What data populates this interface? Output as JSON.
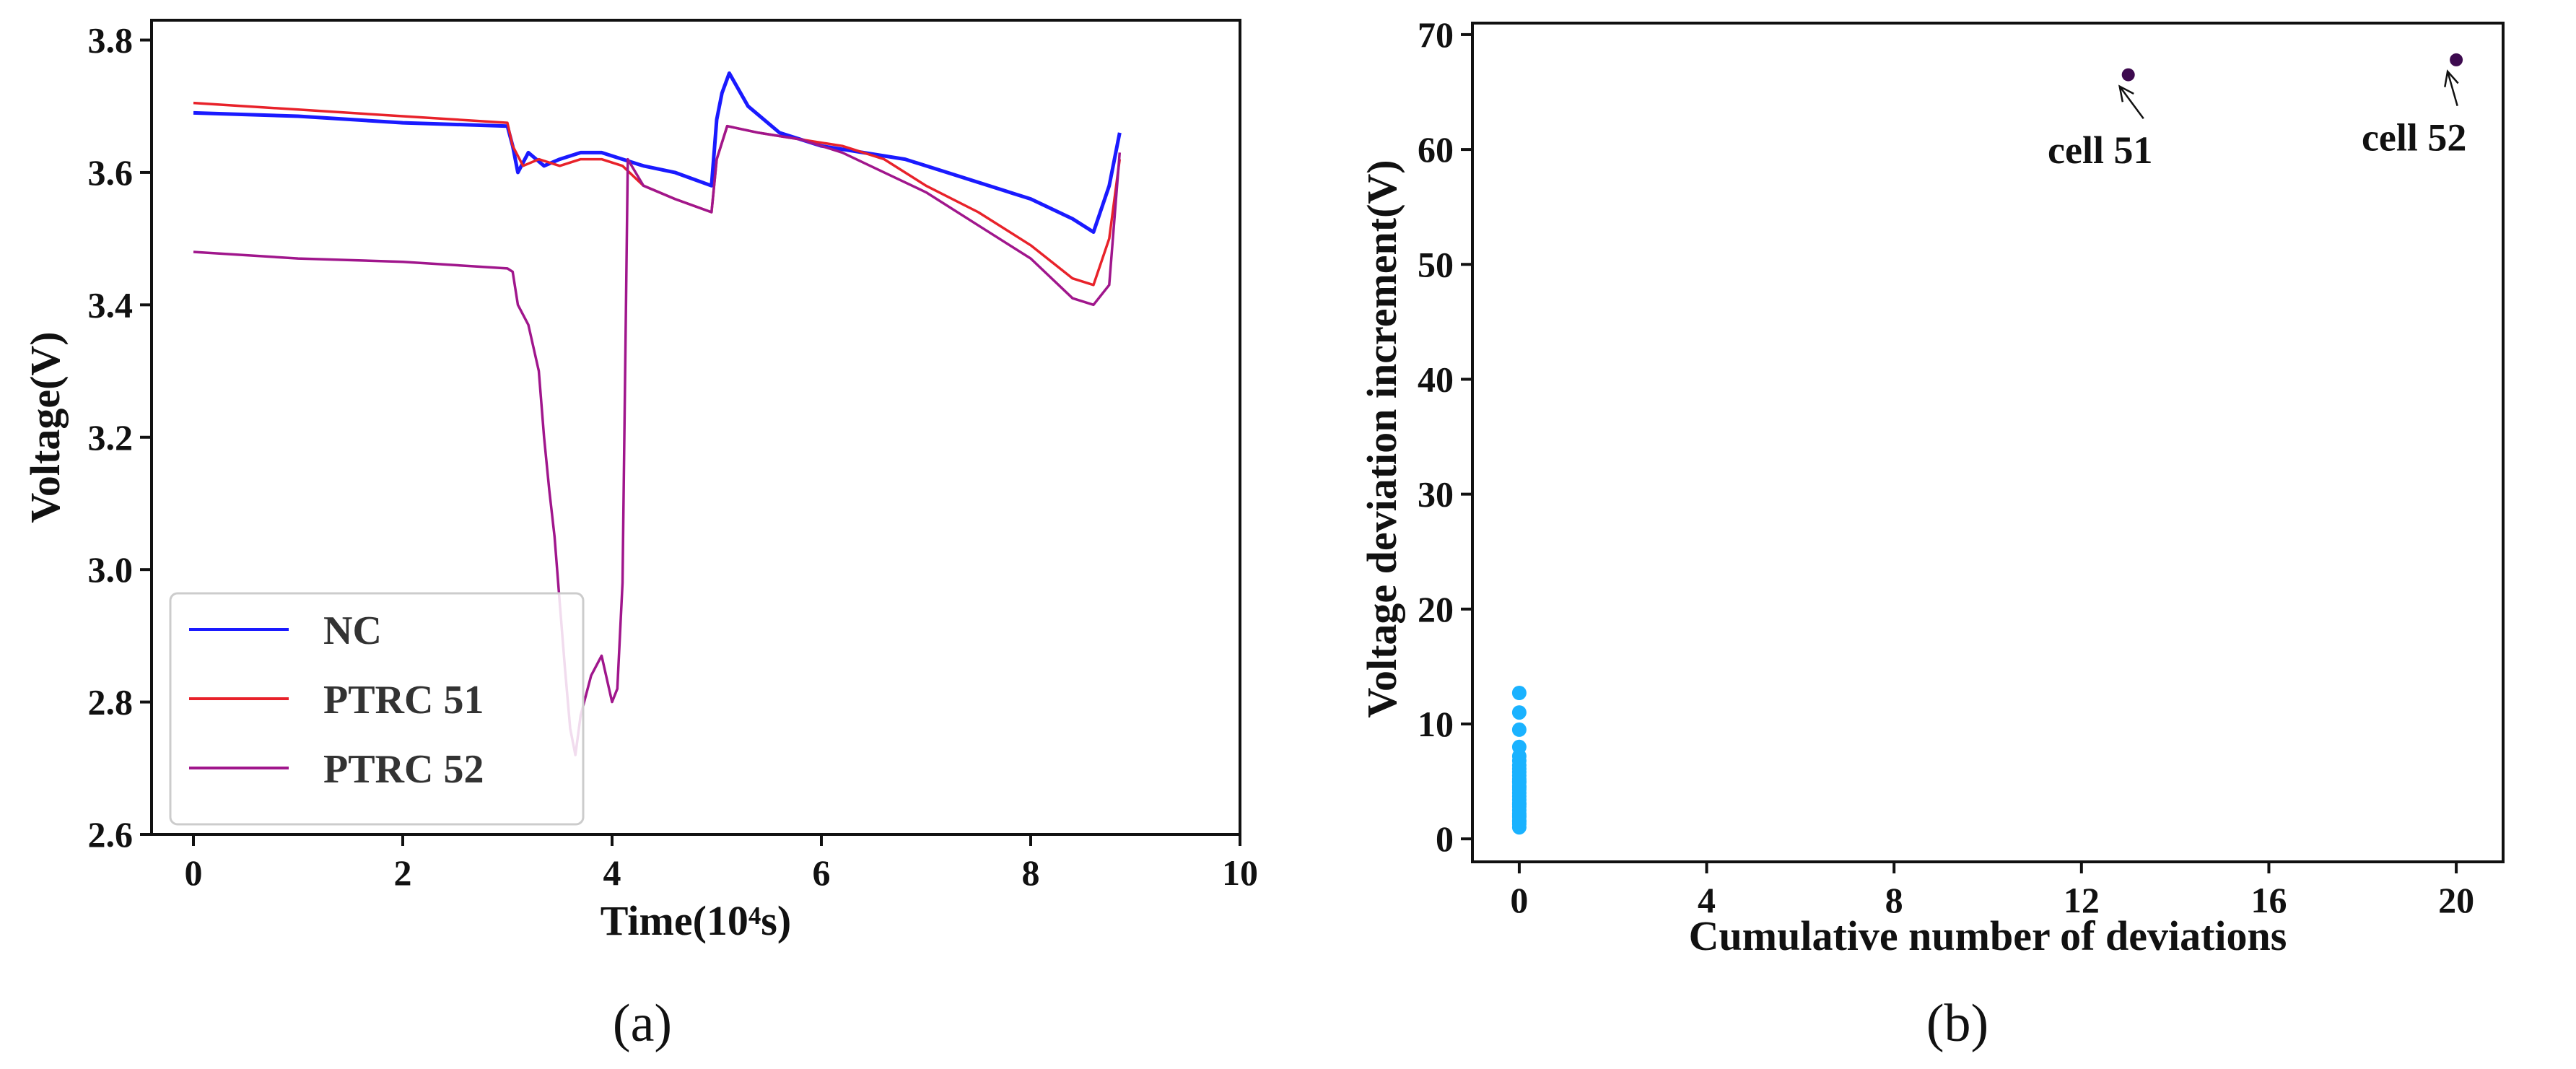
{
  "chart_data": [
    {
      "type": "line",
      "panel_label": "(a)",
      "xlabel": "Time(10⁴s)",
      "ylabel": "Voltage(V)",
      "xlim": [
        -0.4,
        10
      ],
      "ylim": [
        2.6,
        3.83
      ],
      "xticks": [
        "0",
        "2",
        "4",
        "6",
        "8",
        "10"
      ],
      "yticks": [
        "2.6",
        "2.8",
        "3.0",
        "3.2",
        "3.4",
        "3.6",
        "3.8"
      ],
      "legend": "bottom-left",
      "series": [
        {
          "name": "NC",
          "color": "#1a1aff",
          "x": [
            0,
            1,
            2,
            3,
            3.05,
            3.1,
            3.2,
            3.35,
            3.5,
            3.7,
            3.9,
            4.1,
            4.3,
            4.6,
            4.95,
            5.0,
            5.05,
            5.12,
            5.3,
            5.6,
            6.0,
            6.4,
            6.8,
            7.2,
            7.6,
            8.0,
            8.4,
            8.6,
            8.75,
            8.85
          ],
          "y": [
            3.69,
            3.685,
            3.675,
            3.67,
            3.64,
            3.6,
            3.63,
            3.61,
            3.62,
            3.63,
            3.63,
            3.62,
            3.61,
            3.6,
            3.58,
            3.68,
            3.72,
            3.75,
            3.7,
            3.66,
            3.64,
            3.63,
            3.62,
            3.6,
            3.58,
            3.56,
            3.53,
            3.51,
            3.58,
            3.66
          ]
        },
        {
          "name": "PTRC 51",
          "color": "#e8222a",
          "x": [
            0,
            1,
            2,
            3,
            3.05,
            3.15,
            3.3,
            3.5,
            3.7,
            3.9,
            4.1,
            4.3,
            4.6,
            4.95,
            5.0,
            5.1,
            5.4,
            5.8,
            6.2,
            6.6,
            7.0,
            7.5,
            8.0,
            8.4,
            8.6,
            8.75,
            8.85
          ],
          "y": [
            3.705,
            3.695,
            3.685,
            3.675,
            3.64,
            3.61,
            3.62,
            3.61,
            3.62,
            3.62,
            3.61,
            3.58,
            3.56,
            3.54,
            3.62,
            3.67,
            3.66,
            3.65,
            3.64,
            3.62,
            3.58,
            3.54,
            3.49,
            3.44,
            3.43,
            3.5,
            3.62
          ]
        },
        {
          "name": "PTRC 52",
          "color": "#a0168c",
          "x": [
            0,
            1,
            2,
            3,
            3.05,
            3.1,
            3.2,
            3.3,
            3.35,
            3.4,
            3.45,
            3.5,
            3.55,
            3.6,
            3.65,
            3.7,
            3.8,
            3.9,
            4.0,
            4.05,
            4.1,
            4.15,
            4.3,
            4.6,
            4.95,
            5.0,
            5.1,
            5.4,
            5.8,
            6.2,
            6.6,
            7.0,
            7.5,
            8.0,
            8.4,
            8.6,
            8.75,
            8.85
          ],
          "y": [
            3.48,
            3.47,
            3.465,
            3.455,
            3.45,
            3.4,
            3.37,
            3.3,
            3.2,
            3.12,
            3.05,
            2.95,
            2.85,
            2.76,
            2.72,
            2.78,
            2.84,
            2.87,
            2.8,
            2.82,
            2.98,
            3.62,
            3.58,
            3.56,
            3.54,
            3.62,
            3.67,
            3.66,
            3.65,
            3.63,
            3.6,
            3.57,
            3.52,
            3.47,
            3.41,
            3.4,
            3.43,
            3.63
          ]
        }
      ]
    },
    {
      "type": "scatter",
      "panel_label": "(b)",
      "xlabel": "Cumulative number of deviations",
      "ylabel": "Voltage deviation increment(V)",
      "xlim": [
        -1,
        21
      ],
      "ylim": [
        -2,
        71
      ],
      "xticks": [
        "0",
        "4",
        "8",
        "12",
        "16",
        "20"
      ],
      "yticks": [
        "0",
        "10",
        "20",
        "30",
        "40",
        "50",
        "60",
        "70"
      ],
      "series": [
        {
          "color": "#1ab2ff",
          "x": [
            0,
            0,
            0,
            0,
            0,
            0,
            0,
            0,
            0,
            0,
            0,
            0,
            0,
            0,
            0,
            0,
            0,
            0,
            0,
            0,
            0,
            0,
            0,
            0,
            0,
            0,
            0,
            0,
            0,
            0
          ],
          "y": [
            1.0,
            1.3,
            1.6,
            1.9,
            2.2,
            2.5,
            2.8,
            3.1,
            3.4,
            3.7,
            4.0,
            4.3,
            4.6,
            4.9,
            5.2,
            5.5,
            5.8,
            6.1,
            6.4,
            6.8,
            7.2,
            8.0,
            9.5,
            11.0,
            12.7,
            1.5,
            2.0,
            3.0,
            4.5,
            5.0
          ]
        },
        {
          "color": "#3d0a4f",
          "x": [
            13,
            20
          ],
          "y": [
            66.5,
            67.8
          ]
        }
      ],
      "annotations": [
        {
          "text": "cell 51",
          "point": [
            13,
            66.5
          ],
          "label_at": [
            12.4,
            58.8
          ]
        },
        {
          "text": "cell 52",
          "point": [
            20,
            67.8
          ],
          "label_at": [
            19.1,
            59.9
          ]
        }
      ]
    }
  ]
}
